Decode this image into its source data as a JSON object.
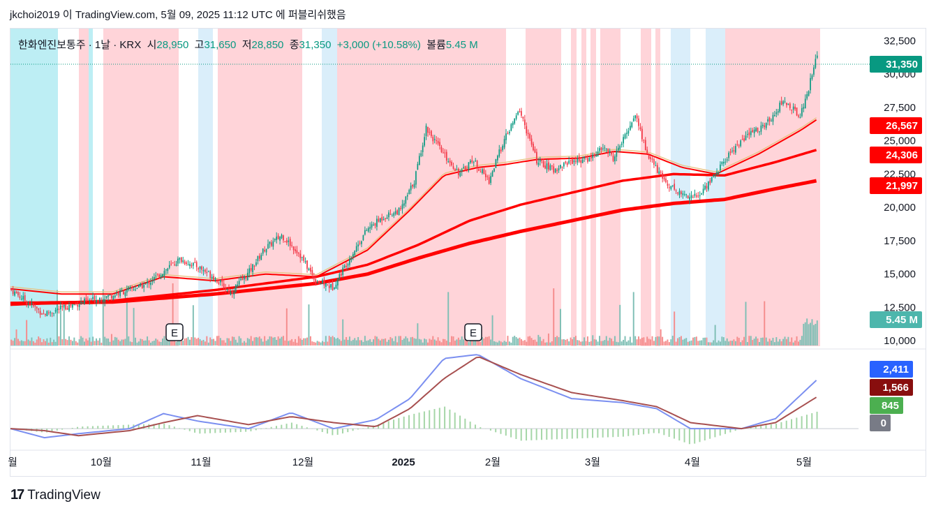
{
  "header": {
    "text": "jkchoi2019 이 TradingView.com, 5월 09, 2025 11:12 UTC 에 퍼블리쉬했음"
  },
  "legend": {
    "symbol": "한화엔진보통주 · 1날 · KRX",
    "open_label": "시",
    "open": "28,950",
    "high_label": "고",
    "high": "31,650",
    "low_label": "저",
    "low": "28,850",
    "close_label": "종",
    "close": "31,350",
    "change": "+3,000 (+10.58%)",
    "volume_label": "볼륨",
    "volume": "5.45 M"
  },
  "logo": {
    "mark": "17",
    "text": "TradingView"
  },
  "colors": {
    "up": "#089981",
    "down": "#f23645",
    "ma_orange": "#e8c07f",
    "ma_red": "#ff0000",
    "bg_red": "#ffcdd2",
    "bg_blue": "#b2ebf2",
    "bg_lightblue": "#d4ebf9",
    "macd_line": "#7b8ff0",
    "signal_line": "#a74f4f",
    "hist": "#a5d6a7",
    "tag_macd": "#2962ff",
    "tag_signal": "#880e0e",
    "tag_hist": "#4caf50",
    "tag_zero": "#787b86"
  },
  "chart_data": [
    {
      "type": "candlestick",
      "title": "",
      "price_axis_ticks": [
        "32,500",
        "30,000",
        "27,500",
        "25,000",
        "22,500",
        "20,000",
        "17,500",
        "15,000",
        "12,500",
        "10,000"
      ],
      "time_axis_labels": [
        "월",
        "10월",
        "11월",
        "12월",
        "2025",
        "2월",
        "3월",
        "4월",
        "5월"
      ],
      "ylim": [
        9800,
        33200
      ],
      "last_price_tag": "31,350",
      "ma_tags": [
        "26,567",
        "24,306",
        "21,997"
      ],
      "volume_tag": "5.45 M",
      "earnings_markers": [
        "E",
        "E"
      ],
      "series": [
        {
          "name": "",
          "approx_path": [
            [
              0,
              13900
            ],
            [
              20,
              12000
            ],
            [
              40,
              12800
            ],
            [
              60,
              13400
            ],
            [
              80,
              14200
            ],
            [
              100,
              16100
            ],
            [
              110,
              15600
            ],
            [
              120,
              14800
            ],
            [
              130,
              13600
            ],
            [
              140,
              15000
            ],
            [
              150,
              16900
            ],
            [
              160,
              17900
            ],
            [
              170,
              16600
            ],
            [
              180,
              14500
            ],
            [
              190,
              14000
            ],
            [
              200,
              16200
            ],
            [
              210,
              18300
            ],
            [
              220,
              19300
            ],
            [
              230,
              19800
            ],
            [
              238,
              22000
            ],
            [
              245,
              26000
            ],
            [
              255,
              24000
            ],
            [
              265,
              22500
            ],
            [
              272,
              23600
            ],
            [
              282,
              22000
            ],
            [
              290,
              24800
            ],
            [
              300,
              27300
            ],
            [
              310,
              23500
            ],
            [
              320,
              22800
            ],
            [
              330,
              23500
            ],
            [
              340,
              23600
            ],
            [
              350,
              24500
            ],
            [
              355,
              23700
            ],
            [
              360,
              24800
            ],
            [
              368,
              27000
            ],
            [
              375,
              24000
            ],
            [
              385,
              22000
            ],
            [
              395,
              21000
            ],
            [
              405,
              20800
            ],
            [
              415,
              22500
            ],
            [
              425,
              24300
            ],
            [
              435,
              25500
            ],
            [
              445,
              26200
            ],
            [
              455,
              28000
            ],
            [
              465,
              26900
            ],
            [
              470,
              28900
            ],
            [
              474,
              31350
            ]
          ]
        },
        {
          "name": "",
          "approx_path": [
            [
              0,
              13900
            ],
            [
              30,
              13500
            ],
            [
              60,
              13500
            ],
            [
              90,
              14800
            ],
            [
              120,
              14500
            ],
            [
              150,
              15000
            ],
            [
              180,
              14800
            ],
            [
              210,
              16800
            ],
            [
              235,
              19800
            ],
            [
              255,
              22400
            ],
            [
              275,
              23000
            ],
            [
              290,
              23200
            ],
            [
              310,
              23600
            ],
            [
              335,
              23700
            ],
            [
              355,
              24200
            ],
            [
              375,
              24000
            ],
            [
              395,
              23000
            ],
            [
              415,
              22500
            ],
            [
              440,
              24000
            ],
            [
              465,
              25800
            ],
            [
              474,
              26567
            ]
          ]
        },
        {
          "name": "",
          "approx_path": [
            [
              0,
              12700
            ],
            [
              60,
              13000
            ],
            [
              120,
              13800
            ],
            [
              180,
              14800
            ],
            [
              210,
              15700
            ],
            [
              240,
              17200
            ],
            [
              270,
              19000
            ],
            [
              300,
              20200
            ],
            [
              330,
              21100
            ],
            [
              360,
              22000
            ],
            [
              390,
              22500
            ],
            [
              420,
              22400
            ],
            [
              450,
              23400
            ],
            [
              474,
              24306
            ]
          ]
        },
        {
          "name": "",
          "approx_path": [
            [
              0,
              12800
            ],
            [
              60,
              12900
            ],
            [
              120,
              13500
            ],
            [
              180,
              14300
            ],
            [
              210,
              15000
            ],
            [
              240,
              16200
            ],
            [
              270,
              17300
            ],
            [
              300,
              18200
            ],
            [
              330,
              19000
            ],
            [
              360,
              19800
            ],
            [
              390,
              20300
            ],
            [
              420,
              20600
            ],
            [
              450,
              21400
            ],
            [
              474,
              21997
            ]
          ]
        }
      ]
    },
    {
      "type": "line",
      "title": "",
      "xlabel": "",
      "ylabel": "",
      "tags": [
        "2,411",
        "1,566",
        "845",
        "0"
      ],
      "series": [
        {
          "name": "",
          "approx_path": [
            [
              0,
              0
            ],
            [
              20,
              -450
            ],
            [
              40,
              -250
            ],
            [
              70,
              0
            ],
            [
              90,
              750
            ],
            [
              110,
              380
            ],
            [
              140,
              0
            ],
            [
              165,
              800
            ],
            [
              190,
              0
            ],
            [
              215,
              450
            ],
            [
              235,
              1500
            ],
            [
              255,
              3500
            ],
            [
              275,
              3700
            ],
            [
              300,
              2500
            ],
            [
              330,
              1500
            ],
            [
              360,
              1300
            ],
            [
              380,
              1000
            ],
            [
              400,
              0
            ],
            [
              430,
              0
            ],
            [
              450,
              500
            ],
            [
              474,
              2411
            ]
          ]
        },
        {
          "name": "",
          "approx_path": [
            [
              0,
              0
            ],
            [
              20,
              -100
            ],
            [
              40,
              -350
            ],
            [
              70,
              -100
            ],
            [
              90,
              300
            ],
            [
              110,
              650
            ],
            [
              140,
              200
            ],
            [
              165,
              600
            ],
            [
              190,
              300
            ],
            [
              215,
              100
            ],
            [
              235,
              1000
            ],
            [
              255,
              2500
            ],
            [
              275,
              3600
            ],
            [
              300,
              2700
            ],
            [
              330,
              1800
            ],
            [
              360,
              1400
            ],
            [
              380,
              1100
            ],
            [
              400,
              300
            ],
            [
              430,
              0
            ],
            [
              450,
              300
            ],
            [
              474,
              1566
            ]
          ]
        },
        {
          "name": "",
          "approx_path": [
            [
              0,
              0
            ],
            [
              20,
              -200
            ],
            [
              40,
              100
            ],
            [
              70,
              200
            ],
            [
              90,
              250
            ],
            [
              110,
              -250
            ],
            [
              140,
              -150
            ],
            [
              165,
              300
            ],
            [
              190,
              -350
            ],
            [
              215,
              200
            ],
            [
              235,
              700
            ],
            [
              255,
              1100
            ],
            [
              275,
              100
            ],
            [
              300,
              -600
            ],
            [
              330,
              -500
            ],
            [
              360,
              -400
            ],
            [
              380,
              -200
            ],
            [
              400,
              -800
            ],
            [
              430,
              0
            ],
            [
              450,
              250
            ],
            [
              474,
              845
            ]
          ]
        }
      ]
    }
  ]
}
